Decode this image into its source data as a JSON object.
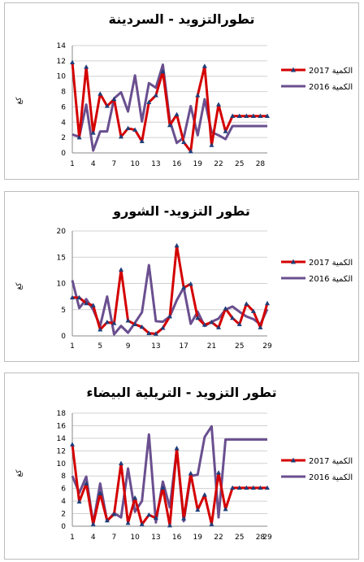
{
  "colors": {
    "series_2017": "#d40000",
    "series_2016": "#6a4f8f",
    "marker": "#1f3f7a",
    "grid": "#d0d0d0"
  },
  "chart_data": [
    {
      "type": "line",
      "title": "تطورالتزويد - السردينة",
      "ylabel": "كغ",
      "ylim": [
        0,
        14
      ],
      "yticks": [
        0,
        2,
        4,
        6,
        8,
        10,
        12,
        14
      ],
      "xticks": [
        1,
        4,
        7,
        10,
        13,
        16,
        19,
        22,
        25,
        28
      ],
      "x": [
        1,
        2,
        3,
        4,
        5,
        6,
        7,
        8,
        9,
        10,
        11,
        12,
        13,
        14,
        15,
        16,
        17,
        18,
        19,
        20,
        21,
        22,
        23,
        24,
        25,
        26,
        27,
        28,
        29
      ],
      "series": [
        {
          "name": "الكمية 2017",
          "values": [
            11.8,
            2.0,
            11.2,
            2.6,
            7.7,
            6.1,
            7.0,
            2.1,
            3.2,
            3.0,
            1.5,
            6.6,
            7.5,
            10.6,
            3.6,
            5.0,
            1.4,
            0.2,
            7.5,
            11.3,
            1.0,
            6.3,
            2.8,
            4.8,
            4.8,
            4.8,
            4.8,
            4.8,
            4.8
          ]
        },
        {
          "name": "الكمية 2016",
          "values": [
            2.4,
            2.1,
            6.3,
            0.3,
            2.8,
            2.8,
            7.1,
            7.9,
            5.4,
            10.1,
            4.1,
            9.1,
            8.5,
            11.5,
            4.2,
            1.3,
            2.0,
            6.1,
            2.3,
            7.0,
            2.7,
            2.3,
            1.8,
            3.5,
            3.5,
            3.5,
            3.5,
            3.5,
            3.5
          ]
        }
      ],
      "legend": [
        "الكمية 2017",
        "الكمية 2016"
      ]
    },
    {
      "type": "line",
      "title": "تطور التزويد- الشورو",
      "ylabel": "كغ",
      "ylim": [
        0,
        20
      ],
      "yticks": [
        0,
        5,
        10,
        15,
        20
      ],
      "xticks": [
        1,
        5,
        9,
        13,
        17,
        21,
        25,
        29
      ],
      "x": [
        1,
        2,
        3,
        4,
        5,
        6,
        7,
        8,
        9,
        10,
        11,
        12,
        13,
        14,
        15,
        16,
        17,
        18,
        19,
        20,
        21,
        22,
        23,
        24,
        25,
        26,
        27,
        28,
        29
      ],
      "series": [
        {
          "name": "الكمية 2017",
          "values": [
            7.3,
            7.3,
            6.2,
            5.8,
            1.2,
            2.6,
            2.4,
            12.6,
            2.9,
            2.2,
            1.7,
            0.5,
            0.4,
            1.5,
            3.7,
            17.2,
            9.2,
            9.9,
            3.4,
            2.1,
            2.6,
            1.6,
            5.2,
            3.4,
            2.2,
            6.1,
            4.7,
            1.6,
            6.2
          ]
        },
        {
          "name": "الكمية 2016",
          "values": [
            10.6,
            5.3,
            7.0,
            5.0,
            1.9,
            7.5,
            0.3,
            1.9,
            0.6,
            2.5,
            4.5,
            13.5,
            2.8,
            2.7,
            3.7,
            6.8,
            9.2,
            2.3,
            4.6,
            1.9,
            2.7,
            3.3,
            5.0,
            5.6,
            4.6,
            3.7,
            3.2,
            2.2,
            5.1
          ]
        }
      ],
      "legend": [
        "الكمية 2017",
        "الكمية 2016"
      ]
    },
    {
      "type": "line",
      "title": "تطور التزويد - التريلية البيضاء",
      "ylabel": "كغ",
      "ylim": [
        0,
        18
      ],
      "yticks": [
        0,
        2,
        4,
        6,
        8,
        10,
        12,
        14,
        16,
        18
      ],
      "xticks": [
        1,
        4,
        7,
        10,
        13,
        16,
        19,
        22,
        25,
        28
      ],
      "xticks_extra": [
        29
      ],
      "x": [
        1,
        2,
        3,
        4,
        5,
        6,
        7,
        8,
        9,
        10,
        11,
        12,
        13,
        14,
        15,
        16,
        17,
        18,
        19,
        20,
        21,
        22,
        23,
        24,
        25,
        26,
        27,
        28,
        29
      ],
      "series": [
        {
          "name": "الكمية 2017",
          "values": [
            13.0,
            3.9,
            6.8,
            0.3,
            5.2,
            0.9,
            1.9,
            10.0,
            0.5,
            4.5,
            0.3,
            1.8,
            1.3,
            6.1,
            0.1,
            12.4,
            1.2,
            8.4,
            2.6,
            5.0,
            0.3,
            8.5,
            2.7,
            6.1,
            6.1,
            6.1,
            6.1,
            6.1,
            6.1
          ]
        },
        {
          "name": "الكمية 2016",
          "values": [
            8.0,
            5.3,
            7.9,
            0.4,
            6.8,
            0.8,
            2.1,
            1.4,
            9.2,
            2.3,
            4.0,
            14.6,
            0.6,
            7.1,
            3.0,
            12.2,
            0.8,
            8.0,
            8.2,
            14.2,
            15.9,
            1.4,
            13.8,
            13.8,
            13.8,
            13.8,
            13.8,
            13.8,
            13.8
          ]
        }
      ],
      "legend": [
        "الكمية 2017",
        "الكمية 2016"
      ]
    }
  ]
}
